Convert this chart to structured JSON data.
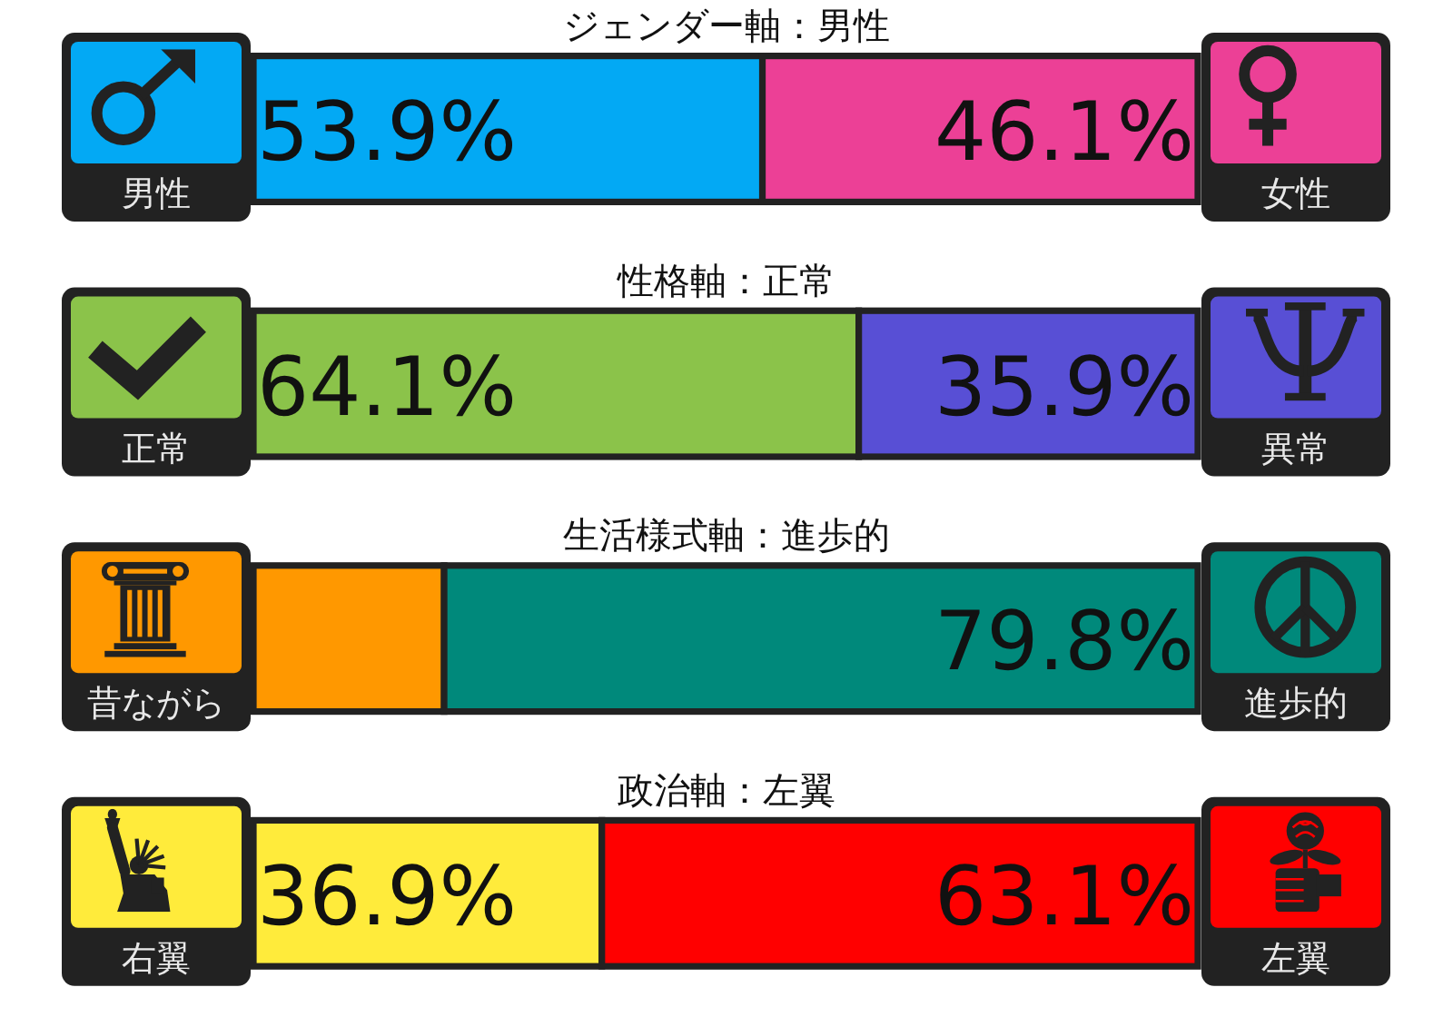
{
  "chart_data": [
    {
      "type": "bar",
      "orientation": "horizontal",
      "stacked": true,
      "legend": "bottom",
      "title": "ジェンダー軸：男性",
      "categories": [
        null
      ],
      "series": [
        {
          "name": "男性",
          "color": "#03a9f4",
          "values": [
            53.9
          ],
          "value_labels": [
            "53.9%"
          ]
        },
        {
          "name": "女性",
          "color": "#ec4096",
          "values": [
            46.1
          ],
          "value_labels": [
            "46.1%"
          ]
        }
      ]
    },
    {
      "type": "bar",
      "orientation": "horizontal",
      "stacked": true,
      "legend": "bottom",
      "title": "性格軸：正常",
      "categories": [
        null
      ],
      "series": [
        {
          "name": "正常",
          "color": "#8bc34a",
          "values": [
            64.1
          ],
          "value_labels": [
            "64.1%"
          ]
        },
        {
          "name": "異常",
          "color": "#584fd5",
          "values": [
            35.9
          ],
          "value_labels": [
            "35.9%"
          ]
        }
      ]
    },
    {
      "type": "bar",
      "orientation": "horizontal",
      "stacked": true,
      "legend": "bottom",
      "title": "生活様式軸：進歩的",
      "categories": [
        null
      ],
      "series": [
        {
          "name": "昔ながら",
          "color": "#ff9800",
          "values": [
            20.2
          ],
          "value_labels": [
            null
          ]
        },
        {
          "name": "進歩的",
          "color": "#00897b",
          "values": [
            79.8
          ],
          "value_labels": [
            "79.8%"
          ]
        }
      ]
    },
    {
      "type": "bar",
      "orientation": "horizontal",
      "stacked": true,
      "legend": "bottom",
      "title": "政治軸：左翼",
      "categories": [
        null
      ],
      "series": [
        {
          "name": "右翼",
          "color": "#ffeb3b",
          "values": [
            36.9
          ],
          "value_labels": [
            "36.9%"
          ]
        },
        {
          "name": "左翼",
          "color": "#ff0000",
          "values": [
            63.1
          ],
          "value_labels": [
            "63.1%"
          ]
        }
      ]
    }
  ]
}
